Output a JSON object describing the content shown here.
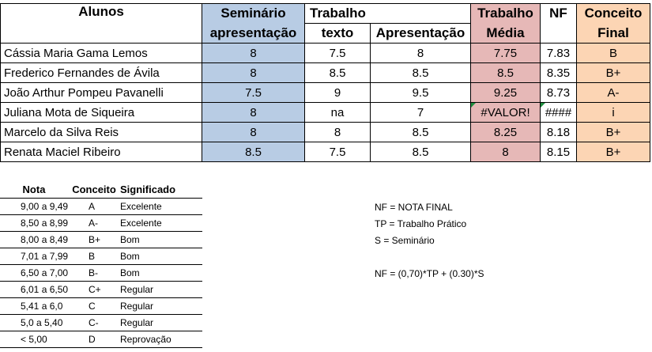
{
  "headers": {
    "alunos": "Alunos",
    "seminario_1": "Seminário",
    "seminario_2": "apresentação",
    "trabalho": "Trabalho",
    "texto": "texto",
    "apresentacao": "Apresentação",
    "trabalho_media_1": "Trabalho",
    "trabalho_media_2": "Média",
    "nf": "NF",
    "conceito_1": "Conceito",
    "conceito_2": "Final"
  },
  "students": [
    {
      "name": "Cássia Maria Gama Lemos",
      "seminario": "8",
      "texto": "7.5",
      "apresentacao": "8",
      "media": "7.75",
      "nf": "7.83",
      "conceito": "B"
    },
    {
      "name": "Frederico Fernandes de Ávila",
      "seminario": "8",
      "texto": "8.5",
      "apresentacao": "8.5",
      "media": "8.5",
      "nf": "8.35",
      "conceito": "B+"
    },
    {
      "name": "João Arthur Pompeu Pavanelli",
      "seminario": "7.5",
      "texto": "9",
      "apresentacao": "9.5",
      "media": "9.25",
      "nf": "8.73",
      "conceito": "A-"
    },
    {
      "name": "Juliana Mota de Siqueira",
      "seminario": "8",
      "texto": "na",
      "apresentacao": "7",
      "media": "#VALOR!",
      "nf": "####",
      "conceito": "i"
    },
    {
      "name": "Marcelo da Silva Reis",
      "seminario": "8",
      "texto": "8",
      "apresentacao": "8.5",
      "media": "8.25",
      "nf": "8.18",
      "conceito": "B+"
    },
    {
      "name": "Renata Maciel Ribeiro",
      "seminario": "8.5",
      "texto": "7.5",
      "apresentacao": "8.5",
      "media": "8",
      "nf": "8.15",
      "conceito": "B+"
    }
  ],
  "legend": {
    "headers": {
      "nota": "Nota",
      "conceito": "Conceito",
      "significado": "Significado"
    },
    "rows": [
      {
        "nota": "9,00 a 9,49",
        "conceito": "A",
        "significado": "Excelente"
      },
      {
        "nota": "8,50 a 8,99",
        "conceito": "A-",
        "significado": "Excelente"
      },
      {
        "nota": "8,00 a 8,49",
        "conceito": "B+",
        "significado": "Bom"
      },
      {
        "nota": "7,01 a 7,99",
        "conceito": "B",
        "significado": "Bom"
      },
      {
        "nota": "6,50 a 7,00",
        "conceito": "B-",
        "significado": "Bom"
      },
      {
        "nota": "6,01 a 6,50",
        "conceito": "C+",
        "significado": "Regular"
      },
      {
        "nota": "5,41 a 6,0",
        "conceito": "C",
        "significado": "Regular"
      },
      {
        "nota": "5,0 a 5,40",
        "conceito": "C-",
        "significado": "Regular"
      },
      {
        "nota": "< 5,00",
        "conceito": "D",
        "significado": "Reprovação"
      }
    ]
  },
  "notes": {
    "nf": "NF  = NOTA FINAL",
    "tp": "TP = Trabalho Prático",
    "s": "S  = Seminário",
    "formula": "NF = (0,70)*TP + (0.30)*S"
  },
  "colors": {
    "seminario_fill": "#b8cce4",
    "media_fill": "#e6b8b7",
    "conceito_fill": "#fcd5b4",
    "error_marker": "#1e8e3e"
  }
}
